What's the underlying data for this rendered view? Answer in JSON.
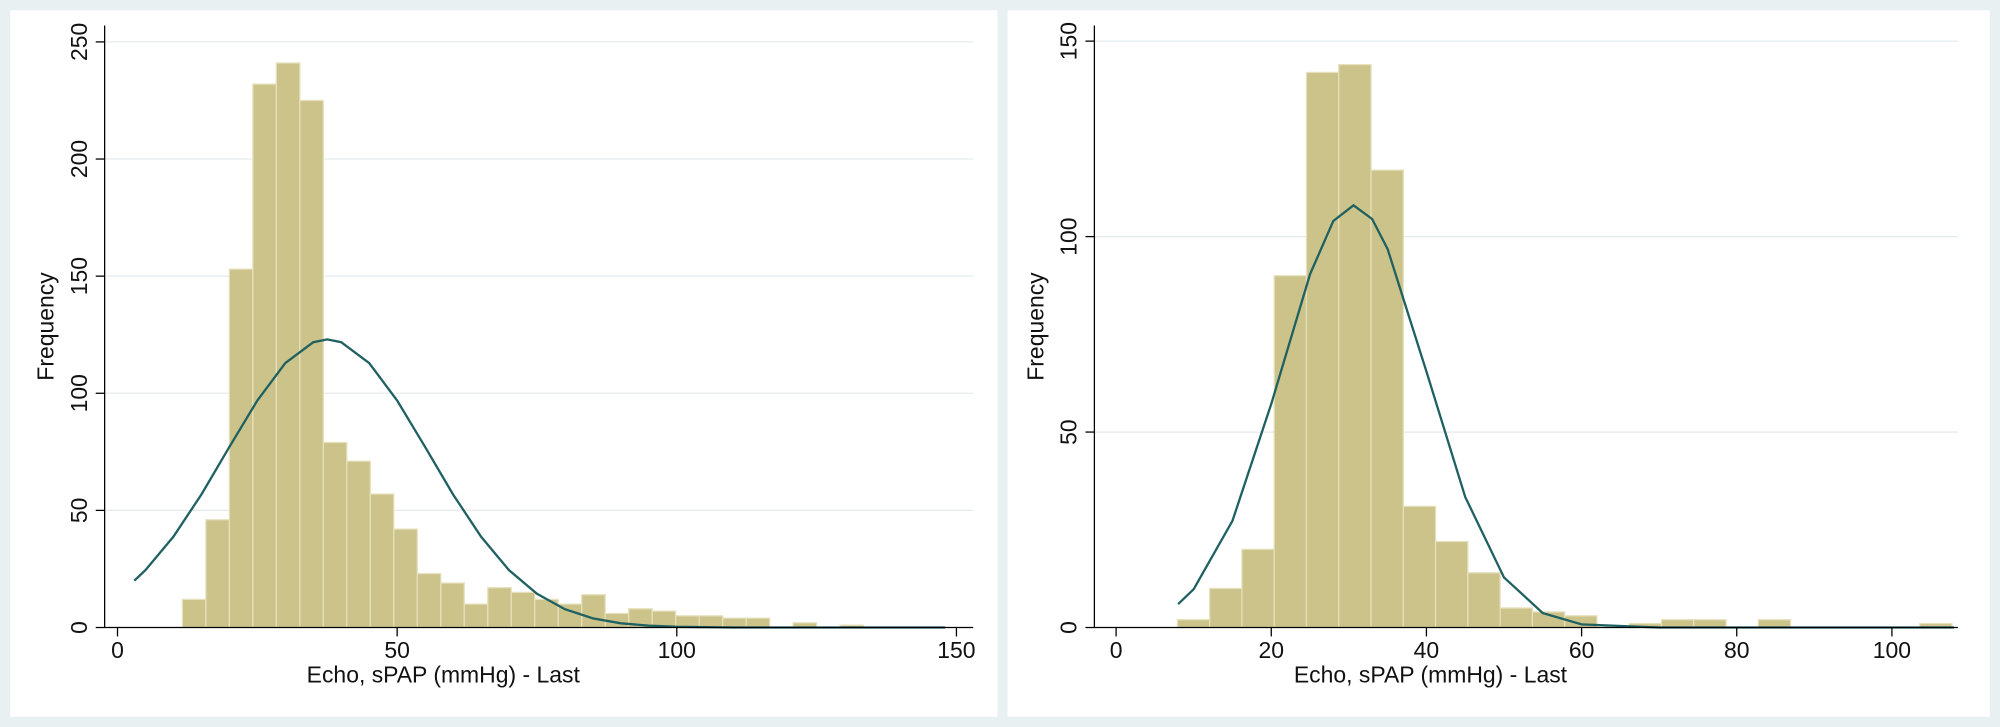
{
  "chart_data": [
    {
      "type": "histogram",
      "xlabel": "Echo, sPAP (mmHg) - Last",
      "ylabel": "Frequency",
      "bins": [
        11.6,
        15.8,
        20.0,
        24.2,
        28.4,
        32.6,
        36.8,
        41.0,
        45.2,
        49.4,
        53.6,
        57.8,
        62.0,
        66.2,
        70.4,
        74.6,
        78.8,
        83.0,
        87.2,
        91.4,
        95.6,
        99.8,
        104.0,
        108.2,
        112.4,
        116.6,
        120.8,
        125.0,
        129.2,
        133.4
      ],
      "values": [
        12,
        46,
        153,
        232,
        241,
        225,
        79,
        71,
        57,
        42,
        23,
        19,
        10,
        17,
        15,
        12,
        10,
        14,
        6,
        8,
        7,
        5,
        5,
        4,
        4,
        0,
        2,
        0,
        1
      ],
      "color": "#cbc38a",
      "curve": {
        "x": [
          3,
          5,
          10,
          15,
          20,
          25,
          30,
          35,
          37.5,
          40,
          45,
          50,
          55,
          60,
          65,
          70,
          75,
          80,
          85,
          90,
          95,
          100,
          110,
          120,
          130,
          148
        ],
        "y": [
          20.0,
          24.5,
          38.8,
          56.8,
          77.1,
          96.9,
          112.9,
          121.8,
          123,
          121.8,
          112.9,
          96.9,
          77.1,
          56.8,
          38.8,
          24.5,
          14.4,
          7.8,
          3.9,
          1.8,
          0.8,
          0.3,
          0.0,
          0.0,
          0.0,
          0.0
        ],
        "color": "#1f6060"
      },
      "xlim": [
        -2.3,
        153
      ],
      "ylim": [
        0,
        257
      ],
      "xticks": [
        0,
        50,
        100,
        150
      ],
      "yticks": [
        0,
        50,
        100,
        150,
        200,
        250
      ],
      "grid": true
    },
    {
      "type": "histogram",
      "xlabel": "Echo, sPAP (mmHg) - Last",
      "ylabel": "Frequency",
      "bins": [
        7.9,
        12.06,
        16.22,
        20.38,
        24.54,
        28.7,
        32.86,
        37.02,
        41.18,
        45.34,
        49.5,
        53.66,
        57.82,
        61.98,
        66.14,
        70.3,
        74.46,
        78.62,
        82.78,
        86.94,
        91.1,
        95.26,
        99.42,
        103.58,
        107.74
      ],
      "values": [
        2,
        10,
        20,
        90,
        142,
        144,
        117,
        31,
        22,
        14,
        5,
        4,
        3,
        0,
        1,
        2,
        2,
        0,
        2,
        0,
        0,
        0,
        0,
        1
      ],
      "color": "#cbc38a",
      "curve": {
        "x": [
          8,
          10,
          15,
          20,
          25,
          28,
          30.6,
          33,
          35,
          40,
          45,
          50,
          55,
          60,
          70,
          80,
          108
        ],
        "y": [
          6.0,
          9.8,
          27.3,
          57.2,
          90.4,
          104.0,
          108,
          104.5,
          96.8,
          65.5,
          33.4,
          12.8,
          3.7,
          0.8,
          0.0,
          0.0,
          0.0
        ],
        "color": "#1f6060"
      },
      "xlim": [
        -2.8,
        108.5
      ],
      "ylim": [
        0,
        154
      ],
      "xticks": [
        0,
        20,
        40,
        60,
        80,
        100
      ],
      "yticks": [
        0,
        50,
        100,
        150
      ],
      "grid": true
    }
  ]
}
